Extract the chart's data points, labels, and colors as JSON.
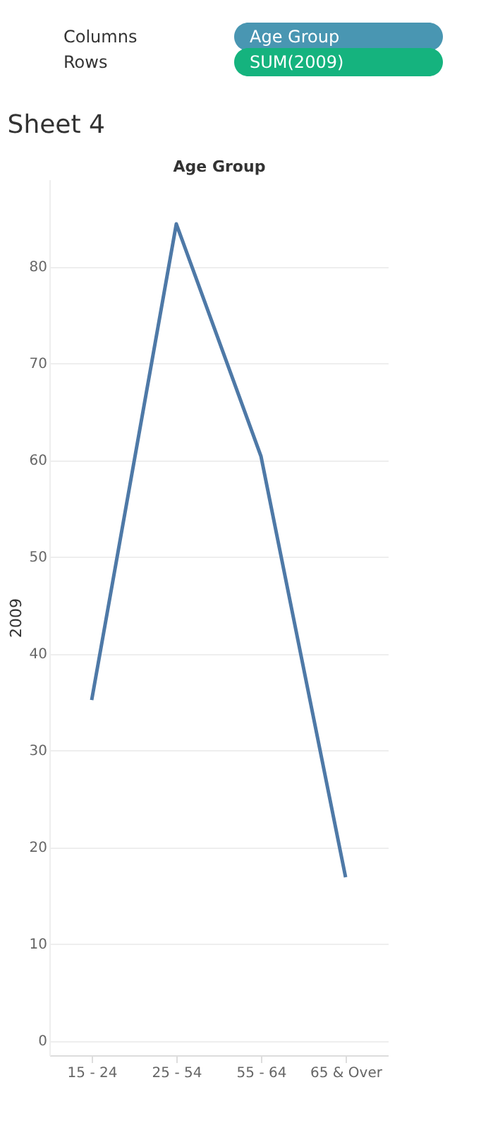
{
  "chart_data": {
    "type": "line",
    "title": "Sheet 4",
    "xlabel": "Age Group",
    "ylabel": "2009",
    "annotations": [
      "Columns",
      "Age Group",
      "Rows",
      "SUM(2009)"
    ],
    "categories": [
      "15 - 24",
      "25 - 54",
      "55 - 64",
      "65 & Over"
    ],
    "series": [
      {
        "color": "#4e79a7",
        "values": [
          35.2,
          84.4,
          60.4,
          16.9
        ]
      }
    ],
    "ylim": [
      -1.5,
      89
    ],
    "yticks": [
      0,
      10,
      20,
      30,
      40,
      50,
      60,
      70,
      80
    ],
    "grid": "y",
    "legend": false,
    "marker": "none",
    "line_style": "solid"
  }
}
